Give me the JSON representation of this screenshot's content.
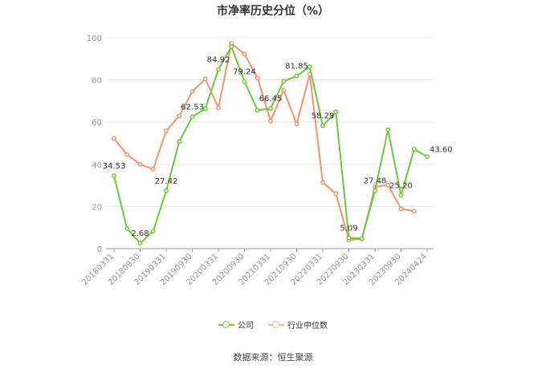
{
  "title": "市净率历史分位（%）",
  "source": "数据来源：恒生聚源",
  "colors": {
    "company": "#6cc93a",
    "industry": "#f4936b",
    "grid": "#e8e8e8",
    "axis": "#999999"
  },
  "chart_data": {
    "type": "line",
    "x_tick_labels": [
      "20180331",
      "20180930",
      "20190331",
      "20190930",
      "20200331",
      "20200930",
      "20210331",
      "20210930",
      "20220331",
      "20220930",
      "20230331",
      "20230930",
      "20240424"
    ],
    "ylim": [
      0,
      100
    ],
    "y_ticks": [
      0,
      20,
      40,
      60,
      80,
      100
    ],
    "grid": true,
    "legend_position": "bottom",
    "series": [
      {
        "name": "公司",
        "color": "#6cc93a",
        "values": [
          34.53,
          9.5,
          2.68,
          8.3,
          27.42,
          50.8,
          62.53,
          66.4,
          84.92,
          95.8,
          79.24,
          65.6,
          66.45,
          79.3,
          81.85,
          86.2,
          58.29,
          64.8,
          5.09,
          4.8,
          27.48,
          56.4,
          25.2,
          47.2,
          43.6
        ],
        "labels": {
          "0": "34.53",
          "2": "2.68",
          "4": "27.42",
          "6": "62.53",
          "8": "84.92",
          "10": "79.24",
          "12": "66.45",
          "14": "81.85",
          "16": "58.29",
          "18": "5.09",
          "20": "27.48",
          "22": "25.20",
          "24": "43.60"
        }
      },
      {
        "name": "行业中位数",
        "color": "#f4936b",
        "values": [
          52.2,
          44.6,
          40.0,
          37.7,
          55.8,
          62.9,
          74.5,
          80.5,
          66.7,
          97.3,
          92.3,
          80.9,
          60.5,
          75.2,
          59.1,
          82.7,
          31.4,
          26.1,
          4.2,
          4.6,
          29.3,
          30.2,
          18.9,
          17.8,
          null
        ]
      }
    ]
  }
}
